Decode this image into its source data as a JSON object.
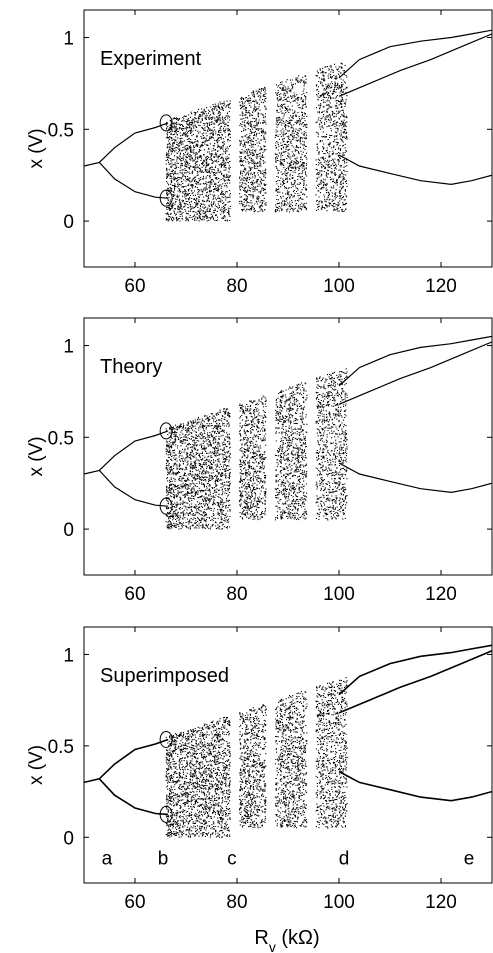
{
  "chart_data": [
    {
      "type": "scatter",
      "title": "Experiment",
      "ylabel": "x (V)",
      "xlabel": "",
      "xlim": [
        50,
        130
      ],
      "ylim": [
        -0.25,
        1.15
      ],
      "xticks": [
        60,
        80,
        100,
        120
      ],
      "yticks": [
        0,
        0.5,
        1
      ],
      "ytick_labels": [
        "0",
        "0.5",
        "1"
      ],
      "grid": false,
      "point_labels": [],
      "branches": [
        {
          "x": [
            50,
            53,
            56,
            60,
            64,
            66.5
          ],
          "y": [
            0.3,
            0.32,
            0.4,
            0.48,
            0.51,
            0.535
          ]
        },
        {
          "x": [
            53,
            56,
            60,
            64,
            66.5
          ],
          "y": [
            0.32,
            0.23,
            0.16,
            0.13,
            0.125
          ]
        },
        {
          "x": [
            100,
            104,
            110,
            116,
            122,
            126,
            130
          ],
          "y": [
            0.78,
            0.88,
            0.95,
            0.98,
            1.0,
            1.02,
            1.04
          ]
        },
        {
          "x": [
            100,
            104,
            110,
            116,
            122,
            126,
            130
          ],
          "y": [
            0.36,
            0.3,
            0.26,
            0.22,
            0.2,
            0.22,
            0.25
          ]
        },
        {
          "x": [
            100,
            106,
            112,
            118,
            124,
            130
          ],
          "y": [
            0.68,
            0.75,
            0.82,
            0.88,
            0.95,
            1.02
          ]
        }
      ],
      "chaotic_region": {
        "x_range": [
          66,
          101.5
        ],
        "y_upper_start": 0.55,
        "y_upper_end": 0.88,
        "y_lower": 0.0
      },
      "windows": [
        79.5,
        86.5,
        94.5
      ]
    },
    {
      "type": "scatter",
      "title": "Theory",
      "ylabel": "x (V)",
      "xlabel": "",
      "xlim": [
        50,
        130
      ],
      "ylim": [
        -0.25,
        1.15
      ],
      "xticks": [
        60,
        80,
        100,
        120
      ],
      "yticks": [
        0,
        0.5,
        1
      ],
      "ytick_labels": [
        "0",
        "0.5",
        "1"
      ],
      "grid": false,
      "point_labels": [],
      "branches": [
        {
          "x": [
            50,
            53,
            56,
            60,
            64,
            66.5
          ],
          "y": [
            0.3,
            0.32,
            0.4,
            0.48,
            0.51,
            0.535
          ]
        },
        {
          "x": [
            53,
            56,
            60,
            64,
            66.5
          ],
          "y": [
            0.32,
            0.23,
            0.16,
            0.13,
            0.125
          ]
        },
        {
          "x": [
            100,
            104,
            110,
            116,
            122,
            126,
            130
          ],
          "y": [
            0.78,
            0.88,
            0.95,
            0.99,
            1.01,
            1.03,
            1.05
          ]
        },
        {
          "x": [
            100,
            104,
            110,
            116,
            122,
            126,
            130
          ],
          "y": [
            0.36,
            0.3,
            0.26,
            0.22,
            0.2,
            0.22,
            0.25
          ]
        },
        {
          "x": [
            100,
            106,
            112,
            118,
            124,
            130
          ],
          "y": [
            0.68,
            0.75,
            0.82,
            0.88,
            0.95,
            1.02
          ]
        }
      ],
      "chaotic_region": {
        "x_range": [
          66,
          101.5
        ],
        "y_upper_start": 0.55,
        "y_upper_end": 0.88,
        "y_lower": 0.0
      },
      "windows": [
        79.5,
        86.5,
        94.5
      ]
    },
    {
      "type": "scatter",
      "title": "Superimposed",
      "ylabel": "x (V)",
      "xlabel": "R_v (kΩ)",
      "xlim": [
        50,
        130
      ],
      "ylim": [
        -0.25,
        1.15
      ],
      "xticks": [
        60,
        80,
        100,
        120
      ],
      "yticks": [
        0,
        0.5,
        1
      ],
      "ytick_labels": [
        "0",
        "0.5",
        "1"
      ],
      "grid": false,
      "point_labels": [
        {
          "label": "a",
          "x": 54.5
        },
        {
          "label": "b",
          "x": 65.5
        },
        {
          "label": "c",
          "x": 79.0
        },
        {
          "label": "d",
          "x": 101.0
        },
        {
          "label": "e",
          "x": 125.5
        }
      ],
      "branches": [
        {
          "x": [
            50,
            53,
            56,
            60,
            64,
            66.5
          ],
          "y": [
            0.3,
            0.32,
            0.4,
            0.48,
            0.51,
            0.535
          ]
        },
        {
          "x": [
            53,
            56,
            60,
            64,
            66.5
          ],
          "y": [
            0.32,
            0.23,
            0.16,
            0.13,
            0.125
          ]
        },
        {
          "x": [
            100,
            104,
            110,
            116,
            122,
            126,
            130
          ],
          "y": [
            0.78,
            0.88,
            0.95,
            0.99,
            1.01,
            1.03,
            1.05
          ]
        },
        {
          "x": [
            100,
            104,
            110,
            116,
            122,
            126,
            130
          ],
          "y": [
            0.36,
            0.3,
            0.26,
            0.22,
            0.2,
            0.22,
            0.25
          ]
        },
        {
          "x": [
            100,
            106,
            112,
            118,
            124,
            130
          ],
          "y": [
            0.68,
            0.75,
            0.82,
            0.88,
            0.95,
            1.02
          ]
        }
      ],
      "chaotic_region": {
        "x_range": [
          66,
          101.5
        ],
        "y_upper_start": 0.55,
        "y_upper_end": 0.88,
        "y_lower": 0.0
      },
      "windows": [
        79.5,
        86.5,
        94.5
      ]
    }
  ],
  "xlabel_main": "R",
  "xlabel_sub": "v",
  "xlabel_unit": " (kΩ)",
  "colors": {
    "ink": "#000000",
    "background": "#ffffff"
  }
}
